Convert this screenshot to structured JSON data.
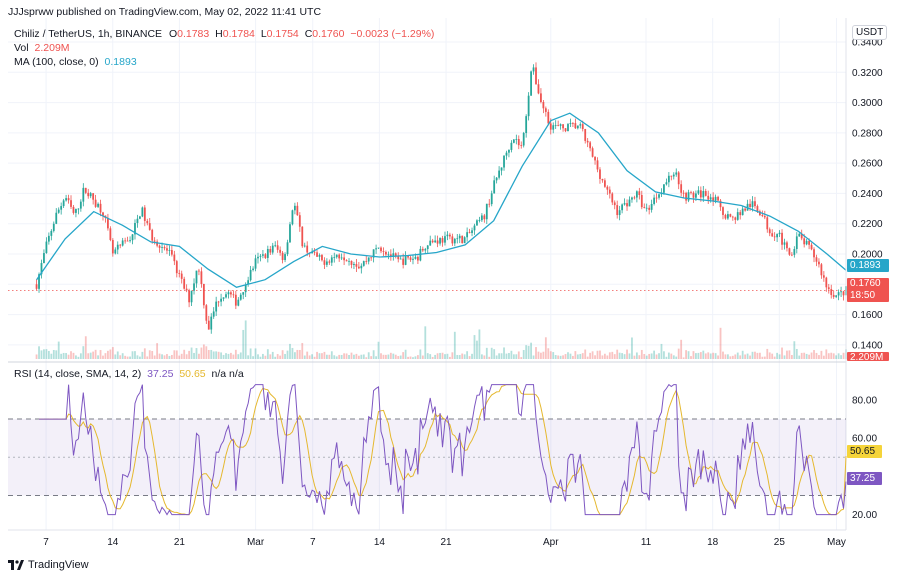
{
  "header": {
    "published": "JJJsprww published on TradingView.com, May 02, 2022 11:41 UTC"
  },
  "legend": {
    "symbol": "Chiliz / TetherUS, 1h, BINANCE",
    "o_label": "O",
    "o_value": "0.1783",
    "h_label": "H",
    "h_value": "0.1784",
    "l_label": "L",
    "l_value": "0.1754",
    "c_label": "C",
    "c_value": "0.1760",
    "change": "−0.0023 (−1.29%)",
    "vol_label": "Vol",
    "vol_value": "2.209M",
    "ma_label": "MA (100, close, 0)",
    "ma_value": "0.1893",
    "rsi_label": "RSI (14, close, SMA, 14, 2)",
    "rsi_value": "37.25",
    "rsi_ma_value": "50.65",
    "rsi_na": "n/a n/a"
  },
  "currency": "USDT",
  "badges": {
    "ma": "0.1893",
    "price": "0.1760",
    "countdown": "18:50",
    "rsi_ma": "50.65",
    "rsi": "37.25",
    "vol": "2.209M"
  },
  "brand": "TradingView",
  "colors": {
    "up": "#26a69a",
    "down": "#ef5350",
    "ma": "#26a6c9",
    "rsi": "#7e57c2",
    "rsi_ma": "#e5b82f"
  },
  "chart_data": [
    {
      "type": "candlestick",
      "title": "Chiliz / TetherUS, 1h, BINANCE",
      "ylim": [
        0.13,
        0.34
      ],
      "y_ticks": [
        "0.3400",
        "0.3200",
        "0.3000",
        "0.2800",
        "0.2600",
        "0.2400",
        "0.2200",
        "0.2000",
        "0.1800",
        "0.1600",
        "0.1400"
      ],
      "x_ticks": [
        "7",
        "14",
        "21",
        "Mar",
        "7",
        "14",
        "21",
        "Apr",
        "11",
        "18",
        "25",
        "May"
      ],
      "price_path": [
        {
          "x": "Feb 6",
          "y": 0.18
        },
        {
          "x": "Feb 7",
          "y": 0.205
        },
        {
          "x": "Feb 8",
          "y": 0.225
        },
        {
          "x": "Feb 9",
          "y": 0.238
        },
        {
          "x": "Feb 10",
          "y": 0.225
        },
        {
          "x": "Feb 11",
          "y": 0.243
        },
        {
          "x": "Feb 13",
          "y": 0.228
        },
        {
          "x": "Feb 14",
          "y": 0.2
        },
        {
          "x": "Feb 16",
          "y": 0.212
        },
        {
          "x": "Feb 17",
          "y": 0.23
        },
        {
          "x": "Feb 18",
          "y": 0.212
        },
        {
          "x": "Feb 20",
          "y": 0.2
        },
        {
          "x": "Feb 21",
          "y": 0.185
        },
        {
          "x": "Feb 22",
          "y": 0.17
        },
        {
          "x": "Feb 23",
          "y": 0.193
        },
        {
          "x": "Feb 24",
          "y": 0.15
        },
        {
          "x": "Feb 25",
          "y": 0.17
        },
        {
          "x": "Feb 26",
          "y": 0.175
        },
        {
          "x": "Feb 27",
          "y": 0.168
        },
        {
          "x": "Mar 1",
          "y": 0.195
        },
        {
          "x": "Mar 3",
          "y": 0.205
        },
        {
          "x": "Mar 4",
          "y": 0.197
        },
        {
          "x": "Mar 5",
          "y": 0.235
        },
        {
          "x": "Mar 6",
          "y": 0.205
        },
        {
          "x": "Mar 8",
          "y": 0.195
        },
        {
          "x": "Mar 10",
          "y": 0.2
        },
        {
          "x": "Mar 12",
          "y": 0.192
        },
        {
          "x": "Mar 14",
          "y": 0.205
        },
        {
          "x": "Mar 16",
          "y": 0.195
        },
        {
          "x": "Mar 18",
          "y": 0.198
        },
        {
          "x": "Mar 19",
          "y": 0.208
        },
        {
          "x": "Mar 21",
          "y": 0.21
        },
        {
          "x": "Mar 23",
          "y": 0.21
        },
        {
          "x": "Mar 25",
          "y": 0.225
        },
        {
          "x": "Mar 26",
          "y": 0.245
        },
        {
          "x": "Mar 28",
          "y": 0.278
        },
        {
          "x": "Mar 29",
          "y": 0.27
        },
        {
          "x": "Mar 30",
          "y": 0.325
        },
        {
          "x": "Mar 31",
          "y": 0.3
        },
        {
          "x": "Apr 1",
          "y": 0.285
        },
        {
          "x": "Apr 2",
          "y": 0.283
        },
        {
          "x": "Apr 4",
          "y": 0.285
        },
        {
          "x": "Apr 5",
          "y": 0.27
        },
        {
          "x": "Apr 6",
          "y": 0.255
        },
        {
          "x": "Apr 7",
          "y": 0.24
        },
        {
          "x": "Apr 8",
          "y": 0.228
        },
        {
          "x": "Apr 10",
          "y": 0.24
        },
        {
          "x": "Apr 11",
          "y": 0.228
        },
        {
          "x": "Apr 12",
          "y": 0.238
        },
        {
          "x": "Apr 14",
          "y": 0.255
        },
        {
          "x": "Apr 15",
          "y": 0.238
        },
        {
          "x": "Apr 17",
          "y": 0.24
        },
        {
          "x": "Apr 18",
          "y": 0.238
        },
        {
          "x": "Apr 19",
          "y": 0.228
        },
        {
          "x": "Apr 20",
          "y": 0.223
        },
        {
          "x": "Apr 22",
          "y": 0.233
        },
        {
          "x": "Apr 23",
          "y": 0.228
        },
        {
          "x": "Apr 24",
          "y": 0.215
        },
        {
          "x": "Apr 25",
          "y": 0.213
        },
        {
          "x": "Apr 26",
          "y": 0.198
        },
        {
          "x": "Apr 27",
          "y": 0.212
        },
        {
          "x": "Apr 28",
          "y": 0.205
        },
        {
          "x": "Apr 29",
          "y": 0.195
        },
        {
          "x": "Apr 30",
          "y": 0.178
        },
        {
          "x": "May 1",
          "y": 0.172
        },
        {
          "x": "May 2",
          "y": 0.176
        }
      ],
      "ma_100": [
        {
          "x": "Feb 6",
          "y": 0.183
        },
        {
          "x": "Feb 9",
          "y": 0.21
        },
        {
          "x": "Feb 12",
          "y": 0.228
        },
        {
          "x": "Feb 15",
          "y": 0.219
        },
        {
          "x": "Feb 18",
          "y": 0.208
        },
        {
          "x": "Feb 21",
          "y": 0.205
        },
        {
          "x": "Feb 24",
          "y": 0.19
        },
        {
          "x": "Feb 27",
          "y": 0.178
        },
        {
          "x": "Mar 2",
          "y": 0.183
        },
        {
          "x": "Mar 5",
          "y": 0.195
        },
        {
          "x": "Mar 8",
          "y": 0.205
        },
        {
          "x": "Mar 11",
          "y": 0.2
        },
        {
          "x": "Mar 14",
          "y": 0.198
        },
        {
          "x": "Mar 17",
          "y": 0.199
        },
        {
          "x": "Mar 20",
          "y": 0.201
        },
        {
          "x": "Mar 23",
          "y": 0.206
        },
        {
          "x": "Mar 26",
          "y": 0.222
        },
        {
          "x": "Mar 29",
          "y": 0.258
        },
        {
          "x": "Apr 1",
          "y": 0.288
        },
        {
          "x": "Apr 3",
          "y": 0.293
        },
        {
          "x": "Apr 6",
          "y": 0.28
        },
        {
          "x": "Apr 9",
          "y": 0.255
        },
        {
          "x": "Apr 12",
          "y": 0.241
        },
        {
          "x": "Apr 15",
          "y": 0.237
        },
        {
          "x": "Apr 18",
          "y": 0.235
        },
        {
          "x": "Apr 21",
          "y": 0.232
        },
        {
          "x": "Apr 24",
          "y": 0.225
        },
        {
          "x": "Apr 27",
          "y": 0.215
        },
        {
          "x": "Apr 30",
          "y": 0.2
        },
        {
          "x": "May 2",
          "y": 0.1893
        }
      ],
      "last": {
        "close": 0.176,
        "ma": 0.1893
      }
    },
    {
      "type": "line",
      "title": "RSI (14, close, SMA, 14, 2)",
      "ylim": [
        13,
        92
      ],
      "y_ticks": [
        "80.00",
        "60.00",
        "40.00",
        "20.00"
      ],
      "bands": [
        30,
        70
      ],
      "series": [
        {
          "name": "RSI",
          "last": 37.25
        },
        {
          "name": "RSI SMA",
          "last": 50.65
        }
      ]
    }
  ]
}
